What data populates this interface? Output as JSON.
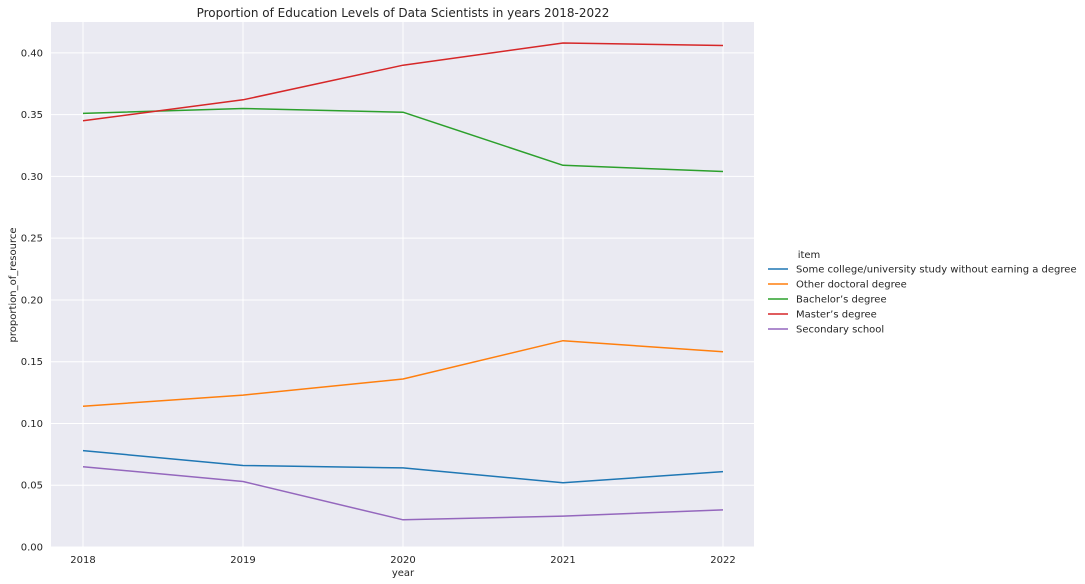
{
  "chart_data": {
    "type": "line",
    "title": "Proportion of Education Levels of Data Scientists in years 2018-2022",
    "xlabel": "year",
    "ylabel": "proportion_of_resource",
    "x": [
      "2018",
      "2019",
      "2020",
      "2021",
      "2022"
    ],
    "ylim": [
      0.0,
      0.425
    ],
    "yticks": [
      "0.00",
      "0.05",
      "0.10",
      "0.15",
      "0.20",
      "0.25",
      "0.30",
      "0.35",
      "0.40"
    ],
    "grid": true,
    "legend_title": "item",
    "legend_position": "right",
    "series": [
      {
        "name": "Some college/university study without earning a degree",
        "color": "#1f77b4",
        "values": [
          0.078,
          0.066,
          0.064,
          0.052,
          0.061
        ]
      },
      {
        "name": "Other doctoral degree",
        "color": "#ff7f0e",
        "values": [
          0.114,
          0.123,
          0.136,
          0.167,
          0.158
        ]
      },
      {
        "name": "Bachelor’s degree",
        "color": "#2ca02c",
        "values": [
          0.351,
          0.355,
          0.352,
          0.309,
          0.304
        ]
      },
      {
        "name": "Master’s degree",
        "color": "#d62728",
        "values": [
          0.345,
          0.362,
          0.39,
          0.408,
          0.406
        ]
      },
      {
        "name": "Secondary school",
        "color": "#9467bd",
        "values": [
          0.065,
          0.053,
          0.022,
          0.025,
          0.03
        ]
      }
    ]
  }
}
